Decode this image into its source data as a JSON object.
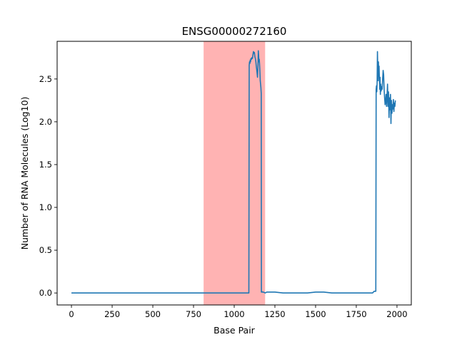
{
  "chart_data": {
    "type": "line",
    "title": "ENSG00000272160",
    "xlabel": "Base Pair",
    "ylabel": "Number of RNA Molecules (Log10)",
    "xlim": [
      -88,
      2088
    ],
    "ylim": [
      -0.14,
      2.94
    ],
    "xticks": [
      0,
      250,
      500,
      750,
      1000,
      1250,
      1500,
      1750,
      2000
    ],
    "yticks": [
      0.0,
      0.5,
      1.0,
      1.5,
      2.0,
      2.5
    ],
    "ytick_labels": [
      "0.0",
      "0.5",
      "1.0",
      "1.5",
      "2.0",
      "2.5"
    ],
    "grid": false,
    "legend": "none",
    "highlight_region": {
      "x_start": 812,
      "x_end": 1190,
      "color": "#ff9999"
    },
    "series": [
      {
        "color": "#1f77b4",
        "x": [
          0,
          1000,
          1090,
          1092,
          1094,
          1096,
          1098,
          1100,
          1103,
          1106,
          1109,
          1112,
          1115,
          1118,
          1121,
          1124,
          1127,
          1130,
          1133,
          1136,
          1140,
          1143,
          1146,
          1148,
          1150,
          1152,
          1154,
          1156,
          1158,
          1160,
          1162,
          1164,
          1166,
          1167,
          1168,
          1169,
          1170,
          1172,
          1180,
          1190,
          1200,
          1220,
          1250,
          1300,
          1350,
          1400,
          1450,
          1500,
          1520,
          1550,
          1600,
          1650,
          1700,
          1750,
          1800,
          1850,
          1855,
          1860,
          1870,
          1872,
          1874,
          1876,
          1878,
          1880,
          1882,
          1884,
          1886,
          1888,
          1890,
          1892,
          1894,
          1896,
          1898,
          1900,
          1903,
          1906,
          1909,
          1912,
          1915,
          1918,
          1921,
          1924,
          1927,
          1930,
          1933,
          1936,
          1939,
          1942,
          1945,
          1948,
          1951,
          1954,
          1957,
          1960,
          1963,
          1966,
          1969,
          1972,
          1975,
          1978,
          1981,
          1984,
          1987,
          1990
        ],
        "y": [
          0,
          0,
          0,
          2.66,
          2.7,
          2.68,
          2.72,
          2.7,
          2.74,
          2.73,
          2.75,
          2.74,
          2.78,
          2.82,
          2.8,
          2.81,
          2.76,
          2.74,
          2.7,
          2.64,
          2.58,
          2.52,
          2.66,
          2.83,
          2.78,
          2.7,
          2.73,
          2.66,
          2.58,
          2.48,
          2.44,
          2.4,
          2.33,
          0.01,
          0.01,
          0.02,
          0.01,
          0.01,
          0.01,
          0.0,
          0.01,
          0.01,
          0.01,
          0.0,
          0.0,
          0.0,
          0.0,
          0.01,
          0.01,
          0.01,
          0.0,
          0.0,
          0.0,
          0.0,
          0.0,
          0.0,
          0.01,
          0.02,
          0.02,
          2.38,
          2.42,
          2.35,
          2.45,
          2.82,
          2.62,
          2.48,
          2.7,
          2.55,
          2.65,
          2.5,
          2.38,
          2.52,
          2.32,
          2.44,
          2.36,
          2.41,
          2.38,
          2.5,
          2.6,
          2.55,
          2.38,
          2.28,
          2.2,
          2.24,
          2.32,
          2.18,
          2.3,
          2.44,
          2.18,
          2.35,
          2.05,
          2.28,
          2.14,
          2.32,
          1.98,
          2.25,
          2.1,
          2.2,
          2.15,
          2.26,
          2.12,
          2.22,
          2.18,
          2.25
        ]
      }
    ]
  }
}
